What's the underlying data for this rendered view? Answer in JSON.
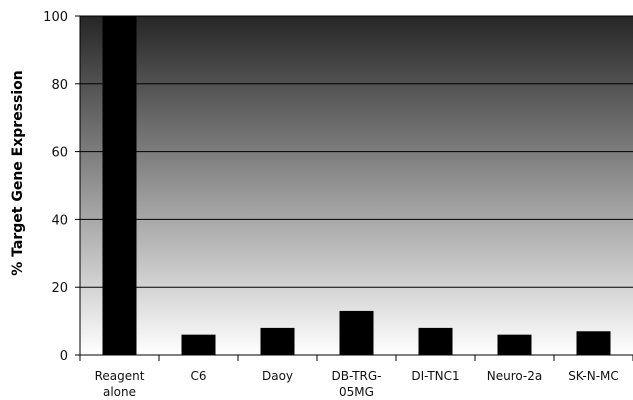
{
  "chart_data": {
    "type": "bar",
    "title": "",
    "xlabel": "",
    "ylabel": "% Target Gene Expression",
    "ylim": [
      0,
      100
    ],
    "yticks": [
      0,
      20,
      40,
      60,
      80,
      100
    ],
    "grid": true,
    "legend": "none",
    "categories": [
      [
        "Reagent",
        "alone"
      ],
      [
        "C6"
      ],
      [
        "Daoy"
      ],
      [
        "DB-TRG-",
        "05MG"
      ],
      [
        "DI-TNC1"
      ],
      [
        "Neuro-2a"
      ],
      [
        "SK-N-MC"
      ]
    ],
    "values": [
      100,
      6,
      8,
      13,
      8,
      6,
      7
    ],
    "colors": {
      "bar": "#000000",
      "gradient_top": "#262626",
      "gradient_bottom": "#ffffff",
      "gridline": "#000000"
    }
  }
}
